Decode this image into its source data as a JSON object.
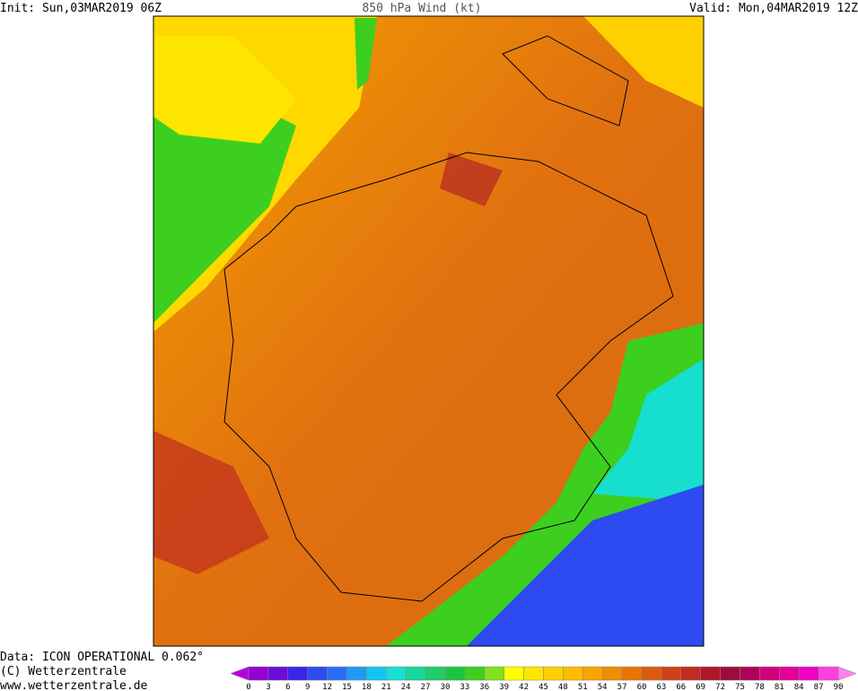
{
  "header": {
    "init": "Init: Sun,03MAR2019 06Z",
    "title": "850 hPa Wind (kt)",
    "valid": "Valid: Mon,04MAR2019 12Z"
  },
  "footer": {
    "data": "Data: ICON OPERATIONAL 0.062°",
    "copyright": "(C) Wetterzentrale",
    "url": "www.wetterzentrale.de"
  },
  "colorbar": {
    "ticks": [
      0,
      3,
      6,
      9,
      12,
      15,
      18,
      21,
      24,
      27,
      30,
      33,
      36,
      39,
      42,
      45,
      48,
      51,
      54,
      57,
      60,
      63,
      66,
      69,
      72,
      75,
      78,
      81,
      84,
      87,
      90
    ],
    "colors": [
      "#9400d3",
      "#6a0ddb",
      "#3b24e8",
      "#2d4bf0",
      "#2a6ef5",
      "#1f9bf5",
      "#13c4f2",
      "#16dfd0",
      "#19d69a",
      "#1ccd6a",
      "#20c43e",
      "#3ccf20",
      "#7fe21a",
      "#ffff00",
      "#ffe600",
      "#ffd000",
      "#ffbb00",
      "#f8a400",
      "#f08c00",
      "#e77400",
      "#dc5a10",
      "#cf4218",
      "#c02c20",
      "#ad1828",
      "#a00a3a",
      "#b0005a",
      "#d10078",
      "#e6009a",
      "#f000c0",
      "#ff40e0"
    ],
    "under_color": "#b400e0",
    "over_color": "#ff80f0"
  }
}
